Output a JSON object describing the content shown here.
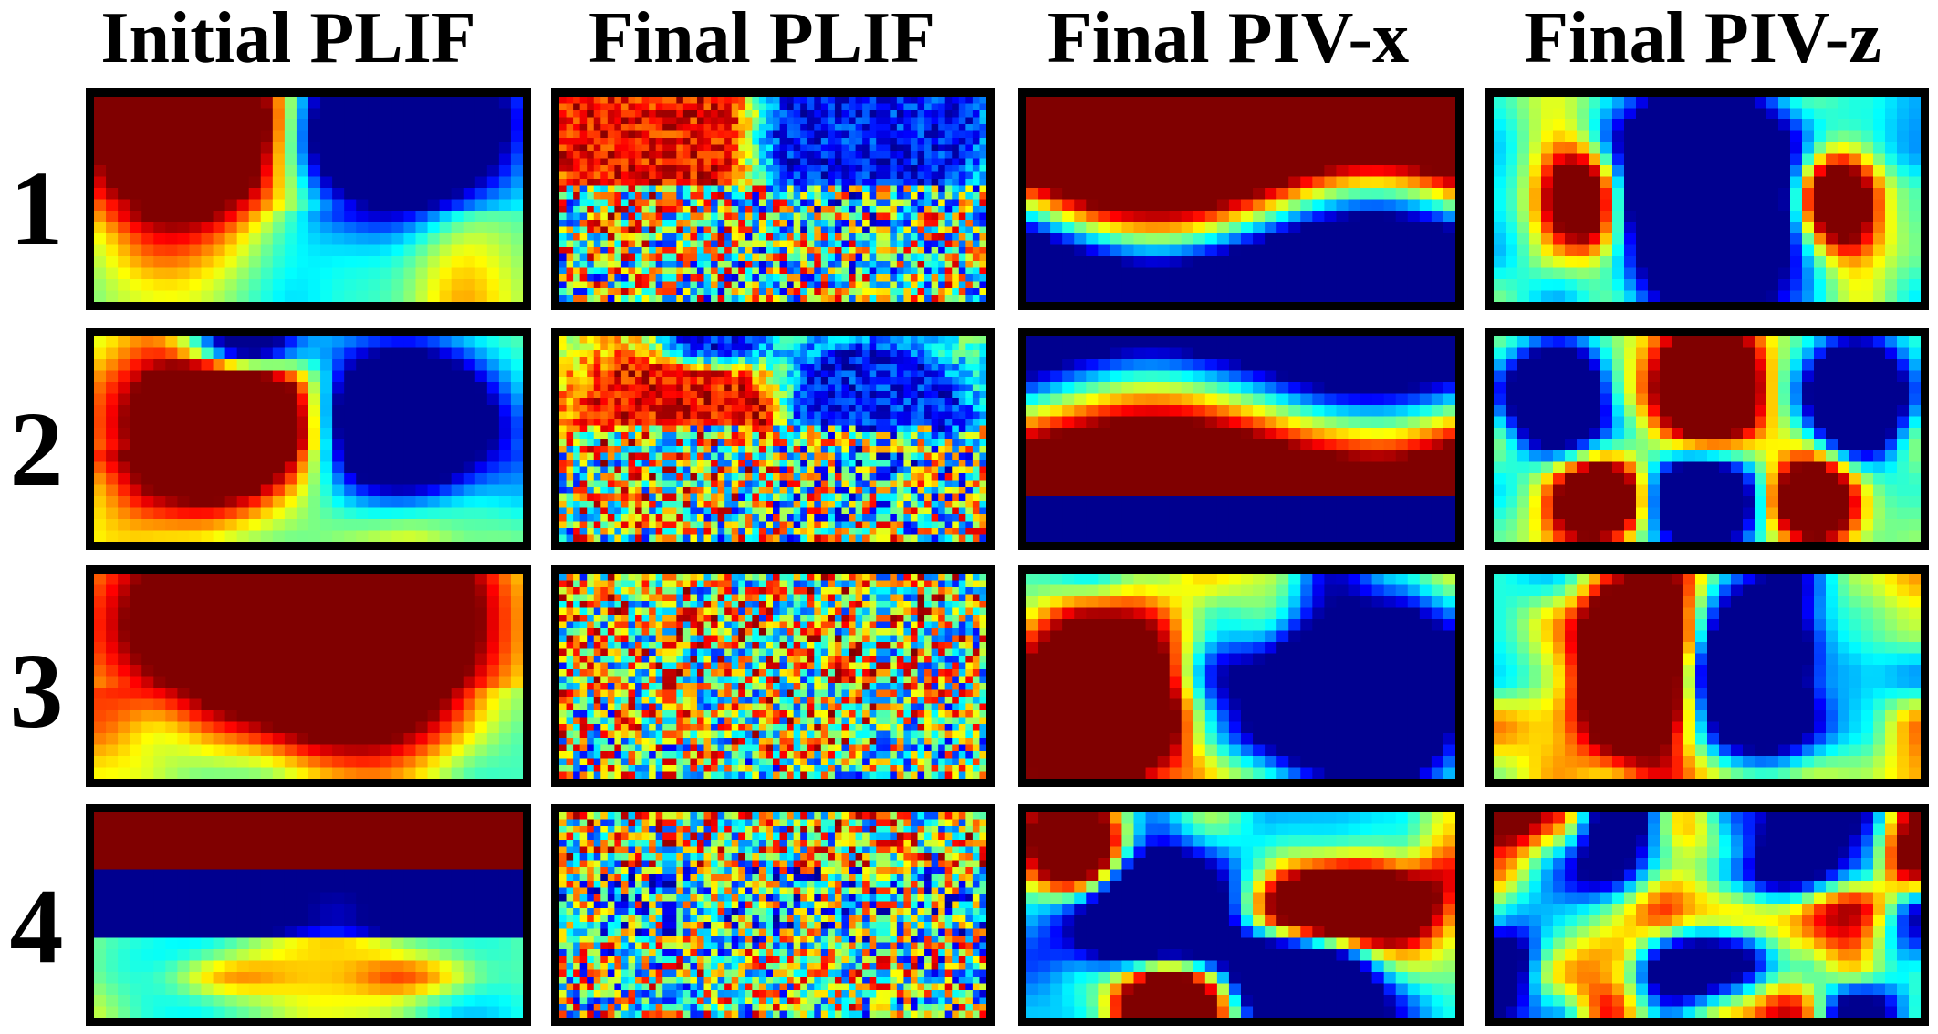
{
  "figure": {
    "columns": [
      {
        "label": "Initial PLIF",
        "kind": "plif-initial"
      },
      {
        "label": "Final PLIF",
        "kind": "plif-final"
      },
      {
        "label": "Final PIV-x",
        "kind": "piv-x"
      },
      {
        "label": "Final PIV-z",
        "kind": "piv-z"
      }
    ],
    "rows": [
      {
        "label": "1"
      },
      {
        "label": "2"
      },
      {
        "label": "3"
      },
      {
        "label": "4"
      }
    ],
    "colormap": {
      "name": "jet",
      "stops": [
        "#00008f",
        "#0000ff",
        "#00ffff",
        "#ffff00",
        "#ff0000",
        "#800000"
      ]
    }
  }
}
